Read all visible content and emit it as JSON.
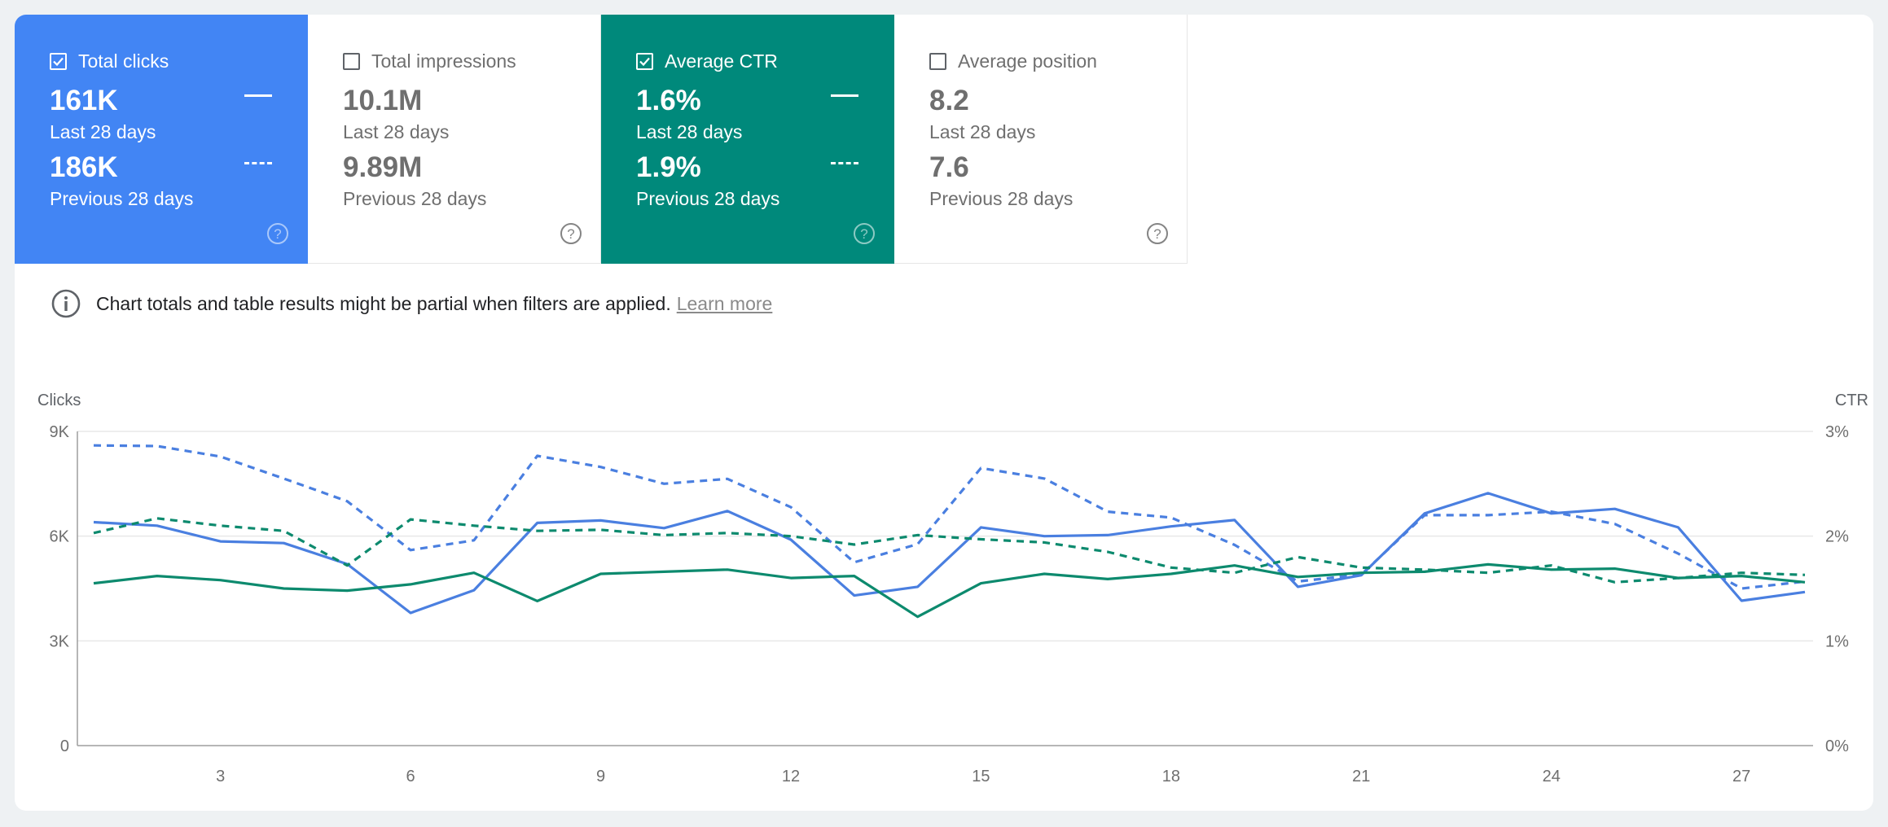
{
  "metrics": [
    {
      "title": "Total clicks",
      "selected": true,
      "color": "#4285f4",
      "current": "161K",
      "current_label": "Last 28 days",
      "previous": "186K",
      "previous_label": "Previous 28 days"
    },
    {
      "title": "Total impressions",
      "selected": false,
      "color": "#ffffff",
      "current": "10.1M",
      "current_label": "Last 28 days",
      "previous": "9.89M",
      "previous_label": "Previous 28 days"
    },
    {
      "title": "Average CTR",
      "selected": true,
      "color": "#00897b",
      "current": "1.6%",
      "current_label": "Last 28 days",
      "previous": "1.9%",
      "previous_label": "Previous 28 days"
    },
    {
      "title": "Average position",
      "selected": false,
      "color": "#ffffff",
      "current": "8.2",
      "current_label": "Last 28 days",
      "previous": "7.6",
      "previous_label": "Previous 28 days"
    }
  ],
  "notice": {
    "text": "Chart totals and table results might be partial when filters are applied.",
    "link": "Learn more"
  },
  "chart_data": {
    "type": "line",
    "x": [
      1,
      2,
      3,
      4,
      5,
      6,
      7,
      8,
      9,
      10,
      11,
      12,
      13,
      14,
      15,
      16,
      17,
      18,
      19,
      20,
      21,
      22,
      23,
      24,
      25,
      26,
      27,
      28
    ],
    "x_ticks": [
      3,
      6,
      9,
      12,
      15,
      18,
      21,
      24,
      27
    ],
    "x_tick_labels": [
      "3",
      "6",
      "9",
      "12",
      "15",
      "18",
      "21",
      "24",
      "27"
    ],
    "left_axis": {
      "label": "Clicks",
      "ticks": [
        0,
        3000,
        6000,
        9000
      ],
      "tick_labels": [
        "0",
        "3K",
        "6K",
        "9K"
      ],
      "range": [
        0,
        9000
      ]
    },
    "right_axis": {
      "label": "CTR",
      "ticks": [
        0,
        1,
        2,
        3
      ],
      "tick_labels": [
        "0%",
        "1%",
        "2%",
        "3%"
      ],
      "range": [
        0,
        3
      ]
    },
    "grid": true,
    "series": [
      {
        "metric": "Total clicks",
        "period": "Last 28 days",
        "axis": "left",
        "color": "#4a7fe0",
        "dashed": false,
        "values": [
          6400,
          6300,
          5850,
          5800,
          5200,
          3800,
          4450,
          6380,
          6450,
          6230,
          6720,
          5900,
          4300,
          4550,
          6250,
          6000,
          6030,
          6280,
          6460,
          4550,
          4880,
          6650,
          7230,
          6650,
          6780,
          6250,
          4150,
          4400
        ]
      },
      {
        "metric": "Total clicks",
        "period": "Previous 28 days",
        "axis": "left",
        "color": "#4a7fe0",
        "dashed": true,
        "values": [
          8600,
          8580,
          8280,
          7650,
          7000,
          5600,
          5880,
          8300,
          7980,
          7500,
          7640,
          6830,
          5250,
          5770,
          7950,
          7650,
          6700,
          6530,
          5750,
          4700,
          4900,
          6600,
          6600,
          6700,
          6350,
          5500,
          4500,
          4700
        ]
      },
      {
        "metric": "Average CTR",
        "period": "Last 28 days",
        "axis": "right",
        "color": "#0d8a6e",
        "dashed": false,
        "values": [
          1.55,
          1.62,
          1.58,
          1.5,
          1.48,
          1.54,
          1.65,
          1.38,
          1.64,
          1.66,
          1.68,
          1.6,
          1.62,
          1.23,
          1.55,
          1.64,
          1.59,
          1.64,
          1.72,
          1.61,
          1.65,
          1.66,
          1.73,
          1.68,
          1.69,
          1.6,
          1.62,
          1.56
        ]
      },
      {
        "metric": "Average CTR",
        "period": "Previous 28 days",
        "axis": "right",
        "color": "#0d8a6e",
        "dashed": true,
        "values": [
          2.03,
          2.17,
          2.1,
          2.05,
          1.72,
          2.16,
          2.1,
          2.05,
          2.06,
          2.01,
          2.03,
          2.0,
          1.92,
          2.01,
          1.97,
          1.94,
          1.85,
          1.7,
          1.65,
          1.8,
          1.7,
          1.68,
          1.65,
          1.72,
          1.56,
          1.6,
          1.65,
          1.63
        ]
      }
    ]
  }
}
